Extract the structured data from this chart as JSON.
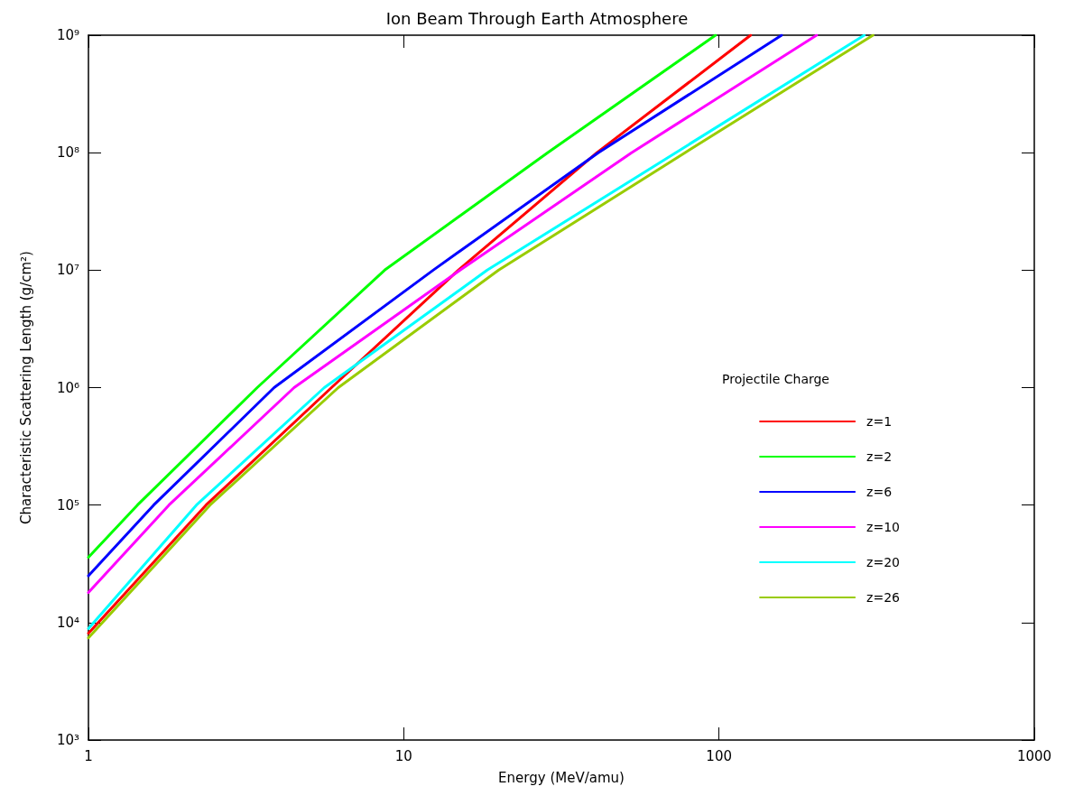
{
  "chart_data": {
    "type": "line",
    "title": "Ion Beam Through Earth Atmosphere",
    "xlabel": "Energy (MeV/amu)",
    "ylabel": "Characteristic Scattering Length (g/cm²)",
    "legend_title": "Projectile Charge",
    "legend": "right",
    "marker": "none",
    "line_style": "solid",
    "log": "xy",
    "xlim": [
      1,
      1000
    ],
    "xticks": [
      1,
      10,
      100,
      1000
    ],
    "ylim": [
      1000,
      1000000000
    ],
    "yticks": [
      {
        "value": 1000,
        "label": "10³"
      },
      {
        "value": 10000,
        "label": "10⁴"
      },
      {
        "value": 100000,
        "label": "10⁵"
      },
      {
        "value": 1000000,
        "label": "10⁶"
      },
      {
        "value": 10000000,
        "label": "10⁷"
      },
      {
        "value": 100000000,
        "label": "10⁸"
      },
      {
        "value": 1000000000,
        "label": "10⁹"
      }
    ],
    "series": [
      {
        "name": "z=1",
        "color": "#ff0000",
        "x": [
          1,
          2.36,
          5.9,
          14.9,
          41,
          126
        ],
        "values": [
          8100,
          100000,
          1000000,
          10000000,
          100000000,
          1000000000
        ]
      },
      {
        "name": "z=2",
        "color": "#00ff00",
        "x": [
          1,
          1.43,
          3.43,
          8.7,
          28.6,
          97.5
        ],
        "values": [
          36000,
          100000,
          1000000,
          10000000,
          100000000,
          1000000000
        ]
      },
      {
        "name": "z=6",
        "color": "#0000ff",
        "x": [
          1,
          1.61,
          3.88,
          12.4,
          41.4,
          158
        ],
        "values": [
          25000,
          100000,
          1000000,
          10000000,
          100000000,
          1000000000
        ]
      },
      {
        "name": "z=10",
        "color": "#ff00ff",
        "x": [
          1,
          1.8,
          4.49,
          15.1,
          52.8,
          204
        ],
        "values": [
          18000,
          100000,
          1000000,
          10000000,
          100000000,
          1000000000
        ]
      },
      {
        "name": "z=20",
        "color": "#00ffff",
        "x": [
          1,
          2.2,
          5.6,
          18.4,
          72.9,
          289
        ],
        "values": [
          8900,
          100000,
          1000000,
          10000000,
          100000000,
          1000000000
        ]
      },
      {
        "name": "z=26",
        "color": "#99cc00",
        "x": [
          1,
          2.43,
          6.2,
          20,
          78,
          308
        ],
        "values": [
          7400,
          100000,
          1000000,
          10000000,
          100000000,
          1000000000
        ]
      }
    ]
  }
}
